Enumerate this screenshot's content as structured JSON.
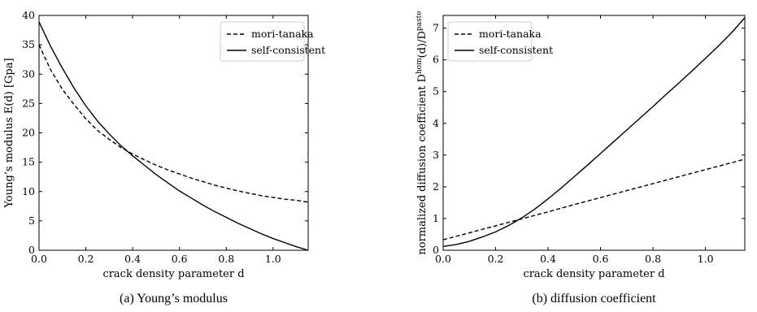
{
  "chart_data": [
    {
      "type": "line",
      "caption": "(a) Young’s modulus",
      "xlabel": "crack density parameter d",
      "ylabel": "Young’s modulus E(d) [Gpa]",
      "xlim": [
        0.0,
        1.15
      ],
      "ylim": [
        0,
        40
      ],
      "xticks": [
        "0.0",
        "0.2",
        "0.4",
        "0.6",
        "0.8",
        "1.0"
      ],
      "yticks": [
        "0",
        "5",
        "10",
        "15",
        "20",
        "25",
        "30",
        "35",
        "40"
      ],
      "grid": false,
      "legend_position": "top-right",
      "series": [
        {
          "name": "mori-tanaka",
          "style": "dashed",
          "color": "#000000",
          "x": [
            0.0,
            0.05,
            0.1,
            0.15,
            0.2,
            0.25,
            0.3,
            0.35,
            0.4,
            0.45,
            0.5,
            0.55,
            0.6,
            0.65,
            0.7,
            0.75,
            0.8,
            0.85,
            0.9,
            0.95,
            1.0,
            1.05,
            1.1,
            1.15
          ],
          "y": [
            35.0,
            30.7,
            27.4,
            24.8,
            22.4,
            20.4,
            18.9,
            17.5,
            16.4,
            15.4,
            14.5,
            13.7,
            13.0,
            12.3,
            11.7,
            11.1,
            10.6,
            10.1,
            9.7,
            9.3,
            9.0,
            8.7,
            8.5,
            8.2
          ]
        },
        {
          "name": "self-consistent",
          "style": "solid",
          "color": "#000000",
          "x": [
            0.0,
            0.05,
            0.1,
            0.15,
            0.2,
            0.25,
            0.3,
            0.35,
            0.4,
            0.45,
            0.5,
            0.55,
            0.6,
            0.65,
            0.7,
            0.75,
            0.8,
            0.85,
            0.9,
            0.95,
            1.0,
            1.05,
            1.1,
            1.15
          ],
          "y": [
            38.9,
            34.7,
            31.0,
            27.6,
            24.6,
            22.0,
            19.8,
            17.8,
            16.1,
            14.5,
            12.9,
            11.5,
            10.1,
            8.9,
            7.7,
            6.6,
            5.6,
            4.6,
            3.7,
            2.8,
            2.0,
            1.3,
            0.6,
            0.0
          ]
        }
      ]
    },
    {
      "type": "line",
      "caption": "(b) diffusion coefficient",
      "xlabel": "crack density parameter d",
      "ylabel": "normalized diffusion coefficient D^hom(d)/D^paste",
      "ylabel_parts": {
        "prefix": "normalized diffusion coefficient D",
        "sup1": "hom",
        "mid": "(d)/D",
        "sup2": "paste"
      },
      "xlim": [
        0.0,
        1.15
      ],
      "ylim": [
        0,
        7.4
      ],
      "xticks": [
        "0.0",
        "0.2",
        "0.4",
        "0.6",
        "0.8",
        "1.0"
      ],
      "yticks": [
        "0",
        "1",
        "2",
        "3",
        "4",
        "5",
        "6",
        "7"
      ],
      "grid": false,
      "legend_position": "top-left",
      "series": [
        {
          "name": "mori-tanaka",
          "style": "dashed",
          "color": "#000000",
          "x": [
            0.0,
            0.1,
            0.2,
            0.3,
            0.4,
            0.5,
            0.6,
            0.7,
            0.8,
            0.9,
            1.0,
            1.1,
            1.15
          ],
          "y": [
            0.33,
            0.55,
            0.77,
            0.99,
            1.21,
            1.44,
            1.66,
            1.88,
            2.1,
            2.32,
            2.54,
            2.76,
            2.87
          ]
        },
        {
          "name": "self-consistent",
          "style": "solid",
          "color": "#000000",
          "x": [
            0.0,
            0.05,
            0.1,
            0.15,
            0.2,
            0.25,
            0.3,
            0.35,
            0.4,
            0.45,
            0.5,
            0.55,
            0.6,
            0.65,
            0.7,
            0.75,
            0.8,
            0.85,
            0.9,
            0.95,
            1.0,
            1.05,
            1.1,
            1.15
          ],
          "y": [
            0.12,
            0.18,
            0.28,
            0.42,
            0.58,
            0.78,
            1.02,
            1.3,
            1.62,
            1.96,
            2.32,
            2.68,
            3.05,
            3.42,
            3.79,
            4.16,
            4.53,
            4.91,
            5.28,
            5.66,
            6.05,
            6.44,
            6.86,
            7.33
          ]
        }
      ]
    }
  ]
}
